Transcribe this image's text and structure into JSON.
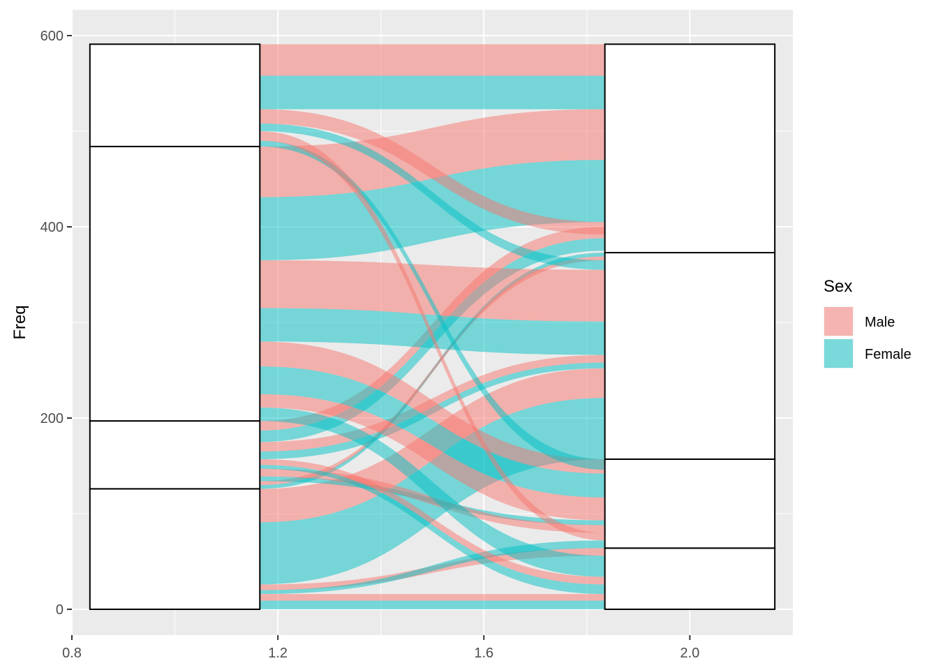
{
  "chart_data": {
    "type": "alluvial",
    "ylabel": "Freq",
    "xlabel": "",
    "xlim": [
      0.8,
      2.2
    ],
    "ylim": [
      -27,
      627
    ],
    "x_ticks": [
      0.8,
      1.2,
      1.6,
      2.0
    ],
    "x_tick_labels": [
      "0.8",
      "1.2",
      "1.6",
      "2.0"
    ],
    "y_ticks": [
      0,
      200,
      400,
      600
    ],
    "y_tick_labels": [
      "0",
      "200",
      "400",
      "600"
    ],
    "grid": true,
    "legend": {
      "title": "Sex",
      "position": "right",
      "entries": [
        {
          "label": "Male",
          "color": "#F8766D"
        },
        {
          "label": "Female",
          "color": "#00BFC4"
        }
      ]
    },
    "axes": [
      {
        "x": 1,
        "width_data": 0.33,
        "strata_boundaries": [
          0,
          126,
          197,
          484,
          591
        ]
      },
      {
        "x": 2,
        "width_data": 0.33,
        "strata_boundaries": [
          0,
          64,
          157,
          373,
          591
        ]
      }
    ],
    "flows": [
      {
        "sex": "Male",
        "left": [
          9,
          16
        ],
        "right": [
          9,
          16
        ]
      },
      {
        "sex": "Female",
        "left": [
          0,
          9
        ],
        "right": [
          0,
          9
        ]
      },
      {
        "sex": "Male",
        "left": [
          20,
          26
        ],
        "right": [
          56,
          64
        ]
      },
      {
        "sex": "Female",
        "left": [
          16,
          20
        ],
        "right": [
          64,
          72
        ]
      },
      {
        "sex": "Female",
        "left": [
          26,
          91
        ],
        "right": [
          157,
          221
        ]
      },
      {
        "sex": "Male",
        "left": [
          91,
          126
        ],
        "right": [
          221,
          252
        ]
      },
      {
        "sex": "Female",
        "left": [
          126,
          130
        ],
        "right": [
          369,
          373
        ]
      },
      {
        "sex": "Male",
        "left": [
          130,
          134
        ],
        "right": [
          365,
          369
        ]
      },
      {
        "sex": "Female",
        "left": [
          134,
          139
        ],
        "right": [
          88,
          93
        ]
      },
      {
        "sex": "Male",
        "left": [
          139,
          147
        ],
        "right": [
          80,
          88
        ]
      },
      {
        "sex": "Female",
        "left": [
          147,
          151
        ],
        "right": [
          16,
          26
        ]
      },
      {
        "sex": "Male",
        "left": [
          151,
          157
        ],
        "right": [
          26,
          34
        ]
      },
      {
        "sex": "Female",
        "left": [
          157,
          165
        ],
        "right": [
          252,
          258
        ]
      },
      {
        "sex": "Male",
        "left": [
          165,
          175
        ],
        "right": [
          258,
          266
        ]
      },
      {
        "sex": "Female",
        "left": [
          175,
          187
        ],
        "right": [
          375,
          388
        ]
      },
      {
        "sex": "Male",
        "left": [
          187,
          197
        ],
        "right": [
          388,
          400
        ]
      },
      {
        "sex": "Female",
        "left": [
          197,
          211
        ],
        "right": [
          34,
          56
        ]
      },
      {
        "sex": "Male",
        "left": [
          211,
          225
        ],
        "right": [
          93,
          117
        ]
      },
      {
        "sex": "Female",
        "left": [
          225,
          254
        ],
        "right": [
          117,
          142
        ]
      },
      {
        "sex": "Male",
        "left": [
          254,
          280
        ],
        "right": [
          142,
          157
        ]
      },
      {
        "sex": "Female",
        "left": [
          280,
          315
        ],
        "right": [
          266,
          301
        ]
      },
      {
        "sex": "Male",
        "left": [
          315,
          365
        ],
        "right": [
          301,
          355
        ]
      },
      {
        "sex": "Female",
        "left": [
          365,
          431
        ],
        "right": [
          405,
          470
        ]
      },
      {
        "sex": "Male",
        "left": [
          431,
          484
        ],
        "right": [
          470,
          523
        ]
      },
      {
        "sex": "Female",
        "left": [
          484,
          490
        ],
        "right": [
          146,
          157
        ]
      },
      {
        "sex": "Male",
        "left": [
          490,
          500
        ],
        "right": [
          72,
          80
        ]
      },
      {
        "sex": "Female",
        "left": [
          500,
          508
        ],
        "right": [
          355,
          365
        ]
      },
      {
        "sex": "Male",
        "left": [
          508,
          523
        ],
        "right": [
          392,
          405
        ]
      },
      {
        "sex": "Female",
        "left": [
          523,
          558
        ],
        "right": [
          523,
          558
        ]
      },
      {
        "sex": "Male",
        "left": [
          558,
          591
        ],
        "right": [
          558,
          591
        ]
      }
    ]
  }
}
